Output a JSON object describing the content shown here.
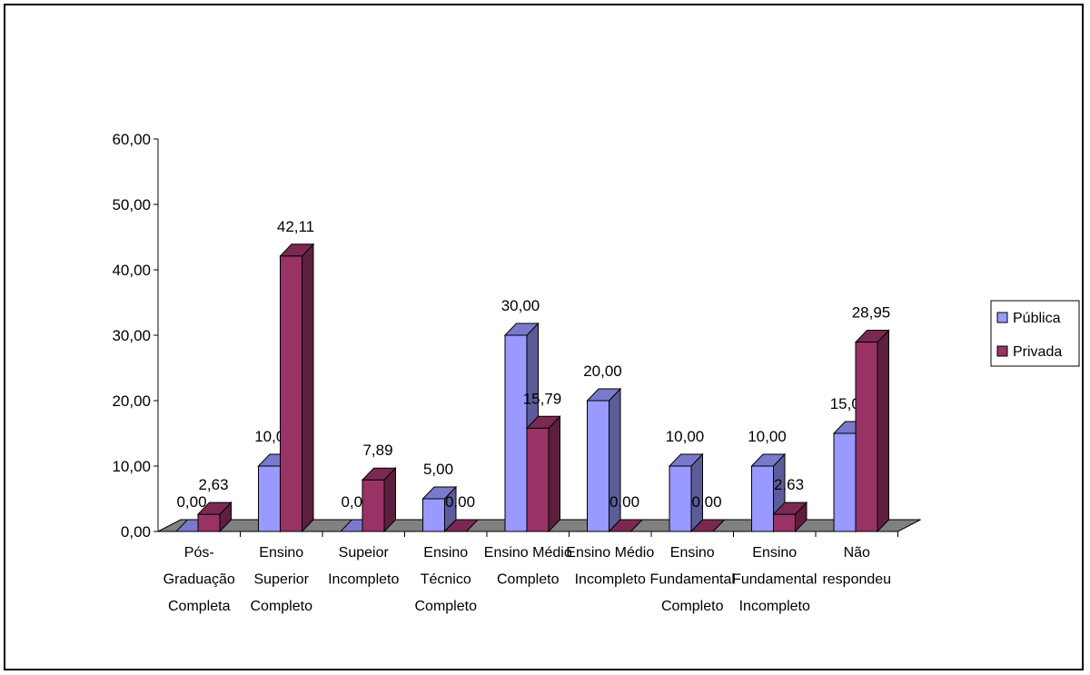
{
  "chart_data": {
    "type": "bar",
    "categories": [
      [
        "Pós-",
        "Graduação",
        "Completa"
      ],
      [
        "Ensino",
        "Superior",
        "Completo"
      ],
      [
        "Supeior",
        "Incompleto"
      ],
      [
        "Ensino",
        "Técnico",
        "Completo"
      ],
      [
        "Ensino Médio",
        "Completo"
      ],
      [
        "Ensino Médio",
        "Incompleto"
      ],
      [
        "Ensino",
        "Fundamental",
        "Completo"
      ],
      [
        "Ensino",
        "Fundamental",
        "Incompleto"
      ],
      [
        "Não",
        "respondeu"
      ]
    ],
    "series": [
      {
        "name": "Pública",
        "color": "#9999ff",
        "values": [
          0.0,
          10.0,
          0.0,
          5.0,
          30.0,
          20.0,
          10.0,
          10.0,
          15.0
        ],
        "labels": [
          "0,00",
          "10,00",
          "0,00",
          "5,00",
          "30,00",
          "20,00",
          "10,00",
          "10,00",
          "15,00"
        ]
      },
      {
        "name": "Privada",
        "color": "#993366",
        "values": [
          2.63,
          42.11,
          7.89,
          0.0,
          15.79,
          0.0,
          0.0,
          2.63,
          28.95
        ],
        "labels": [
          "2,63",
          "42,11",
          "7,89",
          "0,00",
          "15,79",
          "0,00",
          "0,00",
          "2,63",
          "28,95"
        ]
      }
    ],
    "ylim": [
      0,
      60
    ],
    "yticks": [
      0,
      10,
      20,
      30,
      40,
      50,
      60
    ],
    "ytick_labels": [
      "0,00",
      "10,00",
      "20,00",
      "30,00",
      "40,00",
      "50,00",
      "60,00"
    ],
    "legend_position": "right",
    "floor_color": "#808080",
    "title": "",
    "xlabel": "",
    "ylabel": ""
  }
}
